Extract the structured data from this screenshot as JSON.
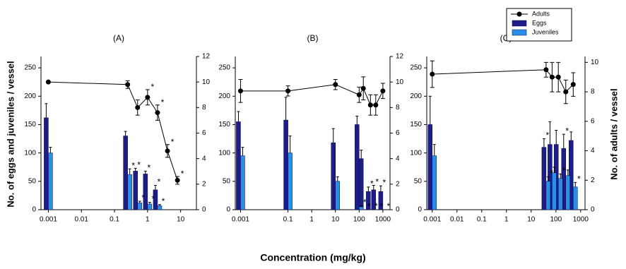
{
  "figure": {
    "ylabel": "No. of eggs and juveniles / vessel",
    "y2label": "No. of adults / vessel",
    "xlabel": "Concentration (mg/kg)"
  },
  "chart_data": [
    {
      "type": "bar-line",
      "title": "(A)",
      "log_x": true,
      "x": [
        0.001,
        0.25,
        0.5,
        1,
        2,
        4,
        8
      ],
      "xlim": [
        0.0006,
        30
      ],
      "xticks": [
        0.001,
        0.01,
        0.1,
        1,
        10
      ],
      "ylim": [
        0,
        270
      ],
      "yticks": [
        0,
        50,
        100,
        150,
        200,
        250
      ],
      "y2lim": [
        0,
        12
      ],
      "y2ticks": [
        0,
        2,
        4,
        6,
        8,
        10,
        12
      ],
      "series": [
        {
          "name": "Eggs",
          "color": "#1c1c8a",
          "values": [
            162,
            130,
            68,
            63,
            35,
            0,
            0
          ],
          "errors": [
            25,
            8,
            5,
            5,
            8,
            0,
            0
          ],
          "markers": [
            null,
            null,
            "*",
            "*",
            "*",
            null,
            null
          ]
        },
        {
          "name": "Juveniles",
          "color": "#2a8fe8",
          "values": [
            100,
            62,
            12,
            10,
            7,
            0,
            0
          ],
          "errors": [
            10,
            10,
            3,
            3,
            2,
            0,
            0
          ],
          "markers": [
            null,
            "*",
            "*",
            "*",
            "*",
            null,
            null
          ]
        },
        {
          "name": "Adults",
          "color": "#000000",
          "axis": "y2",
          "values": [
            10,
            9.8,
            8.0,
            8.8,
            7.6,
            4.6,
            2.3
          ],
          "errors": [
            0,
            0.3,
            0.6,
            0.6,
            0.6,
            0.5,
            0.3
          ],
          "markers": [
            null,
            null,
            null,
            "*",
            "*",
            "*",
            "*"
          ]
        }
      ]
    },
    {
      "type": "bar-line",
      "title": "(B)",
      "log_x": true,
      "x": [
        0.001,
        0.1,
        10,
        100,
        150,
        300,
        500,
        1000
      ],
      "xlim": [
        0.0006,
        2000
      ],
      "xticks": [
        0.001,
        0.1,
        1,
        10,
        100,
        1000
      ],
      "ylim": [
        0,
        270
      ],
      "yticks": [
        0,
        50,
        100,
        150,
        200,
        250
      ],
      "y2lim": [
        0,
        12
      ],
      "y2ticks": [
        0,
        2,
        4,
        6,
        8,
        10,
        12
      ],
      "series": [
        {
          "name": "Eggs",
          "color": "#1c1c8a",
          "values": [
            155,
            158,
            118,
            150,
            90,
            32,
            35,
            32
          ],
          "errors": [
            18,
            40,
            25,
            15,
            15,
            8,
            8,
            10
          ],
          "markers": [
            null,
            null,
            null,
            null,
            null,
            "*",
            "*",
            "*"
          ]
        },
        {
          "name": "Juveniles",
          "color": "#2a8fe8",
          "values": [
            95,
            100,
            50,
            5,
            0,
            0,
            0,
            0
          ],
          "errors": [
            15,
            30,
            8,
            2,
            0,
            0,
            0,
            0
          ],
          "markers": [
            null,
            null,
            null,
            "*",
            "*",
            "*",
            "*",
            "*"
          ]
        },
        {
          "name": "Adults",
          "color": "#000000",
          "axis": "y2",
          "values": [
            9.3,
            9.3,
            9.8,
            9.0,
            9.5,
            8.2,
            8.2,
            9.3
          ],
          "errors": [
            0.9,
            0.4,
            0.4,
            0.6,
            0.9,
            0.8,
            0.8,
            0.6
          ],
          "markers": [
            null,
            null,
            null,
            null,
            null,
            null,
            null,
            null
          ]
        }
      ]
    },
    {
      "type": "bar-line",
      "title": "(C)",
      "log_x": true,
      "legend": true,
      "x": [
        0.001,
        40,
        70,
        125,
        250,
        500
      ],
      "xlim": [
        0.0006,
        1500
      ],
      "xticks": [
        0.001,
        0.01,
        0.1,
        1,
        10,
        100,
        1000
      ],
      "ylim": [
        0,
        270
      ],
      "yticks": [
        0,
        50,
        100,
        150,
        200,
        250
      ],
      "y2lim": [
        0,
        10.4
      ],
      "y2ticks": [
        0,
        2,
        4,
        6,
        8,
        10
      ],
      "series": [
        {
          "name": "Eggs",
          "color": "#1c1c8a",
          "values": [
            150,
            110,
            115,
            115,
            108,
            122
          ],
          "errors": [
            50,
            15,
            40,
            25,
            25,
            15
          ],
          "markers": [
            null,
            "*",
            null,
            null,
            "*",
            null
          ]
        },
        {
          "name": "Juveniles",
          "color": "#2a8fe8",
          "values": [
            95,
            50,
            65,
            55,
            60,
            40
          ],
          "errors": [
            20,
            8,
            10,
            8,
            10,
            8
          ],
          "markers": [
            null,
            "*",
            null,
            "*",
            null,
            "*"
          ]
        },
        {
          "name": "Adults",
          "color": "#000000",
          "axis": "y2",
          "values": [
            9.2,
            9.5,
            9.0,
            9.0,
            8.0,
            8.5
          ],
          "errors": [
            0.9,
            0.5,
            1.0,
            1.0,
            0.8,
            0.8
          ],
          "markers": [
            null,
            null,
            null,
            null,
            null,
            null
          ]
        }
      ]
    }
  ]
}
